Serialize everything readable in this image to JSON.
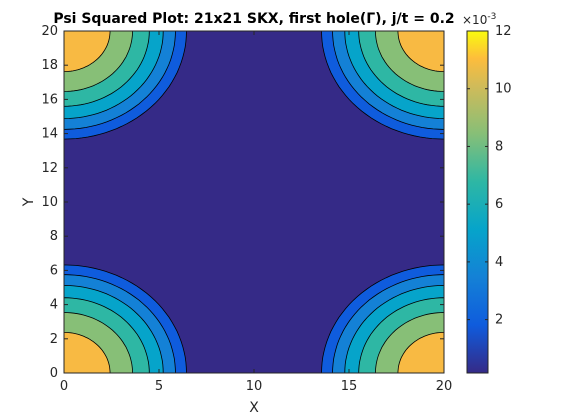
{
  "chart_data": {
    "type": "contourf",
    "title": "Psi Squared Plot: 21x21 SKX, first hole(Γ), j/t = 0.2",
    "xlabel": "X",
    "ylabel": "Y",
    "xlim": [
      0,
      20
    ],
    "ylim": [
      0,
      20
    ],
    "x_ticks": [
      0,
      5,
      10,
      15,
      20
    ],
    "y_ticks": [
      0,
      2,
      4,
      6,
      8,
      10,
      12,
      14,
      16,
      18,
      20
    ],
    "colorbar": {
      "exponent_label": "×10",
      "exponent_power": "-3",
      "range": [
        0.00015,
        0.012
      ],
      "ticks": [
        2,
        4,
        6,
        8,
        10,
        12
      ],
      "colormap": "parula"
    },
    "contour_levels": [
      0.0019,
      0.0036,
      0.0053,
      0.007,
      0.0087,
      0.0104
    ],
    "fill_colors": [
      "#352a87",
      "#0f5cdd",
      "#1481d6",
      "#06a4ca",
      "#2eb7a4",
      "#87bf77",
      "#f8ba43"
    ],
    "corner_peak_value": 0.0118,
    "corner_decay_radius": 6.9,
    "grid": false,
    "colorbar_location": "right"
  }
}
